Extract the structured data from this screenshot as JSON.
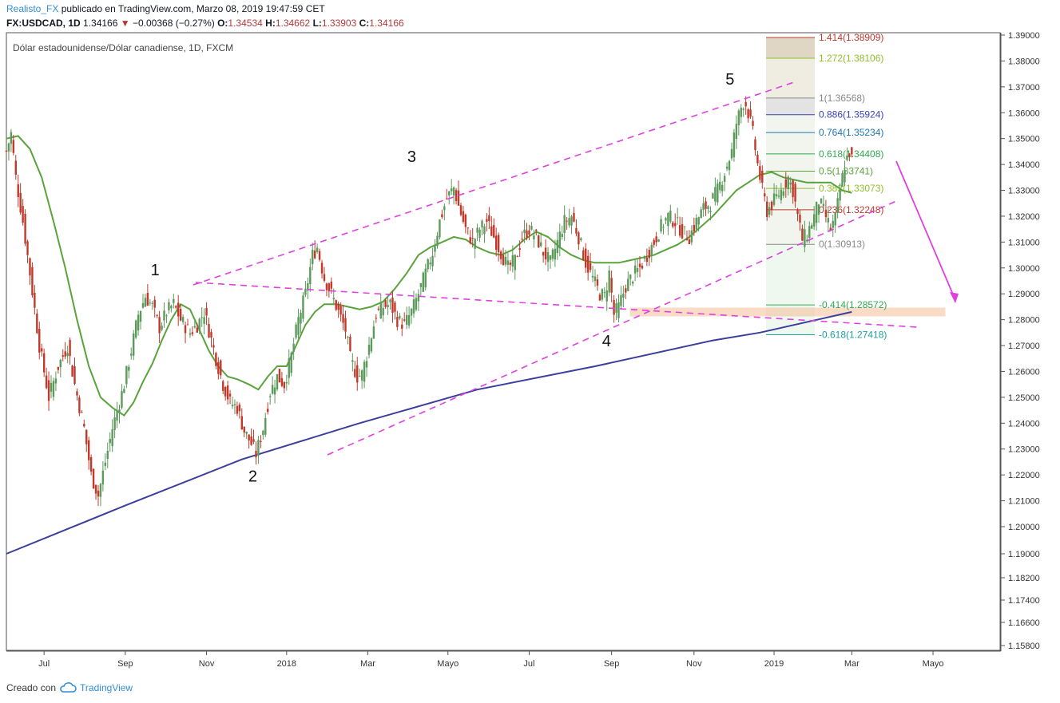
{
  "header": {
    "author": "Realisto_FX",
    "published_text": " publicado en TradingView.com, Marzo 08, 2019 19:47:59 CET",
    "symbol": "FX:USDCAD, 1D",
    "last": "1.34166",
    "change": "−0.00368 (−0.27%)",
    "open_label": "O:",
    "open": "1.34534",
    "high_label": "H:",
    "high": "1.34662",
    "low_label": "L:",
    "low": "1.33903",
    "close_label": "C:",
    "close": "1.34166"
  },
  "chart_title": "Dólar estadounidense/Dólar canadiense, 1D, FXCM",
  "footer": {
    "created_with": "Creado con",
    "brand": "TradingView"
  },
  "colors": {
    "up_candle": "#5b9a5b",
    "down_candle": "#c0392b",
    "ma_green": "#5aa33c",
    "ma_blue": "#3a3f9c",
    "channel": "#e040e0",
    "support_zone": "#f4b183",
    "axis_text": "#333333"
  },
  "chart_data": {
    "type": "candlestick",
    "symbol": "USDCAD",
    "timeframe": "1D",
    "y_axis": {
      "ticks": [
        "1.39000",
        "1.38000",
        "1.37000",
        "1.36000",
        "1.35000",
        "1.34000",
        "1.33000",
        "1.32000",
        "1.31000",
        "1.30000",
        "1.29000",
        "1.28000",
        "1.27000",
        "1.26000",
        "1.25000",
        "1.24000",
        "1.23000",
        "1.22000",
        "1.21000",
        "1.20000",
        "1.19000",
        "1.18200",
        "1.17400",
        "1.16600",
        "1.15800"
      ],
      "position": "right"
    },
    "x_axis": {
      "ticks": [
        "Jul",
        "Sep",
        "Nov",
        "2018",
        "Mar",
        "Mayo",
        "Jul",
        "Sep",
        "Nov",
        "2019",
        "Mar",
        "Mayo"
      ]
    },
    "price_path": [
      [
        0,
        1.345
      ],
      [
        4,
        1.352
      ],
      [
        8,
        1.335
      ],
      [
        14,
        1.318
      ],
      [
        20,
        1.298
      ],
      [
        28,
        1.27
      ],
      [
        36,
        1.25
      ],
      [
        44,
        1.262
      ],
      [
        52,
        1.27
      ],
      [
        58,
        1.255
      ],
      [
        66,
        1.238
      ],
      [
        72,
        1.22
      ],
      [
        78,
        1.212
      ],
      [
        84,
        1.225
      ],
      [
        90,
        1.238
      ],
      [
        96,
        1.248
      ],
      [
        100,
        1.255
      ],
      [
        106,
        1.268
      ],
      [
        112,
        1.282
      ],
      [
        118,
        1.289
      ],
      [
        124,
        1.285
      ],
      [
        130,
        1.277
      ],
      [
        136,
        1.283
      ],
      [
        142,
        1.286
      ],
      [
        148,
        1.28
      ],
      [
        156,
        1.275
      ],
      [
        162,
        1.278
      ],
      [
        168,
        1.283
      ],
      [
        172,
        1.276
      ],
      [
        178,
        1.265
      ],
      [
        184,
        1.255
      ],
      [
        190,
        1.248
      ],
      [
        196,
        1.246
      ],
      [
        202,
        1.237
      ],
      [
        208,
        1.232
      ],
      [
        212,
        1.228
      ],
      [
        218,
        1.238
      ],
      [
        224,
        1.252
      ],
      [
        230,
        1.258
      ],
      [
        236,
        1.255
      ],
      [
        242,
        1.266
      ],
      [
        248,
        1.28
      ],
      [
        254,
        1.29
      ],
      [
        260,
        1.305
      ],
      [
        264,
        1.308
      ],
      [
        270,
        1.296
      ],
      [
        276,
        1.29
      ],
      [
        282,
        1.283
      ],
      [
        288,
        1.276
      ],
      [
        292,
        1.265
      ],
      [
        298,
        1.258
      ],
      [
        302,
        1.259
      ],
      [
        308,
        1.27
      ],
      [
        314,
        1.282
      ],
      [
        320,
        1.285
      ],
      [
        326,
        1.286
      ],
      [
        332,
        1.28
      ],
      [
        338,
        1.278
      ],
      [
        344,
        1.283
      ],
      [
        350,
        1.29
      ],
      [
        356,
        1.298
      ],
      [
        362,
        1.306
      ],
      [
        368,
        1.318
      ],
      [
        374,
        1.327
      ],
      [
        380,
        1.331
      ],
      [
        384,
        1.324
      ],
      [
        390,
        1.315
      ],
      [
        396,
        1.31
      ],
      [
        402,
        1.315
      ],
      [
        408,
        1.318
      ],
      [
        414,
        1.312
      ],
      [
        420,
        1.306
      ],
      [
        426,
        1.3
      ],
      [
        432,
        1.303
      ],
      [
        438,
        1.312
      ],
      [
        444,
        1.315
      ],
      [
        450,
        1.312
      ],
      [
        456,
        1.306
      ],
      [
        462,
        1.302
      ],
      [
        468,
        1.31
      ],
      [
        474,
        1.318
      ],
      [
        480,
        1.32
      ],
      [
        486,
        1.312
      ],
      [
        492,
        1.302
      ],
      [
        498,
        1.296
      ],
      [
        504,
        1.29
      ],
      [
        508,
        1.289
      ],
      [
        512,
        1.298
      ],
      [
        516,
        1.282
      ],
      [
        520,
        1.285
      ],
      [
        526,
        1.293
      ],
      [
        532,
        1.297
      ],
      [
        538,
        1.3
      ],
      [
        544,
        1.305
      ],
      [
        550,
        1.31
      ],
      [
        556,
        1.316
      ],
      [
        562,
        1.32
      ],
      [
        568,
        1.318
      ],
      [
        574,
        1.314
      ],
      [
        580,
        1.312
      ],
      [
        586,
        1.318
      ],
      [
        592,
        1.323
      ],
      [
        598,
        1.325
      ],
      [
        604,
        1.33
      ],
      [
        610,
        1.337
      ],
      [
        616,
        1.345
      ],
      [
        620,
        1.356
      ],
      [
        624,
        1.362
      ],
      [
        627,
        1.365
      ],
      [
        630,
        1.36
      ],
      [
        634,
        1.352
      ],
      [
        638,
        1.34
      ],
      [
        642,
        1.33
      ],
      [
        646,
        1.322
      ],
      [
        652,
        1.326
      ],
      [
        658,
        1.33
      ],
      [
        664,
        1.335
      ],
      [
        668,
        1.33
      ],
      [
        672,
        1.32
      ],
      [
        676,
        1.311
      ],
      [
        680,
        1.313
      ],
      [
        686,
        1.32
      ],
      [
        690,
        1.326
      ],
      [
        694,
        1.322
      ],
      [
        700,
        1.315
      ],
      [
        704,
        1.319
      ],
      [
        708,
        1.33
      ],
      [
        712,
        1.34
      ],
      [
        716,
        1.345
      ],
      [
        718,
        1.342
      ]
    ],
    "moving_averages": [
      {
        "name": "",
        "color_key": "ma_green",
        "points": [
          [
            0,
            1.35
          ],
          [
            10,
            1.351
          ],
          [
            20,
            1.346
          ],
          [
            30,
            1.335
          ],
          [
            40,
            1.318
          ],
          [
            50,
            1.3
          ],
          [
            60,
            1.28
          ],
          [
            70,
            1.262
          ],
          [
            80,
            1.25
          ],
          [
            90,
            1.246
          ],
          [
            100,
            1.243
          ],
          [
            108,
            1.248
          ],
          [
            116,
            1.256
          ],
          [
            124,
            1.263
          ],
          [
            132,
            1.272
          ],
          [
            140,
            1.28
          ],
          [
            148,
            1.286
          ],
          [
            156,
            1.284
          ],
          [
            164,
            1.276
          ],
          [
            172,
            1.268
          ],
          [
            180,
            1.262
          ],
          [
            188,
            1.258
          ],
          [
            196,
            1.257
          ],
          [
            206,
            1.255
          ],
          [
            214,
            1.253
          ],
          [
            222,
            1.258
          ],
          [
            230,
            1.262
          ],
          [
            238,
            1.262
          ],
          [
            246,
            1.27
          ],
          [
            254,
            1.278
          ],
          [
            262,
            1.283
          ],
          [
            270,
            1.286
          ],
          [
            280,
            1.286
          ],
          [
            290,
            1.285
          ],
          [
            300,
            1.284
          ],
          [
            310,
            1.285
          ],
          [
            320,
            1.287
          ],
          [
            330,
            1.292
          ],
          [
            340,
            1.298
          ],
          [
            350,
            1.305
          ],
          [
            360,
            1.308
          ],
          [
            370,
            1.31
          ],
          [
            380,
            1.312
          ],
          [
            390,
            1.311
          ],
          [
            400,
            1.308
          ],
          [
            410,
            1.306
          ],
          [
            420,
            1.305
          ],
          [
            430,
            1.307
          ],
          [
            440,
            1.311
          ],
          [
            450,
            1.314
          ],
          [
            460,
            1.312
          ],
          [
            470,
            1.308
          ],
          [
            480,
            1.305
          ],
          [
            490,
            1.303
          ],
          [
            500,
            1.302
          ],
          [
            510,
            1.302
          ],
          [
            520,
            1.302
          ],
          [
            530,
            1.303
          ],
          [
            540,
            1.304
          ],
          [
            550,
            1.305
          ],
          [
            560,
            1.307
          ],
          [
            570,
            1.309
          ],
          [
            580,
            1.312
          ],
          [
            590,
            1.316
          ],
          [
            600,
            1.32
          ],
          [
            610,
            1.325
          ],
          [
            620,
            1.33
          ],
          [
            630,
            1.333
          ],
          [
            640,
            1.336
          ],
          [
            650,
            1.337
          ],
          [
            660,
            1.335
          ],
          [
            670,
            1.334
          ],
          [
            680,
            1.333
          ],
          [
            690,
            1.333
          ],
          [
            700,
            1.333
          ],
          [
            710,
            1.33
          ],
          [
            718,
            1.329
          ]
        ]
      },
      {
        "name": "",
        "color_key": "ma_blue",
        "points": [
          [
            0,
            1.19
          ],
          [
            100,
            1.208
          ],
          [
            200,
            1.226
          ],
          [
            300,
            1.24
          ],
          [
            400,
            1.253
          ],
          [
            500,
            1.262
          ],
          [
            600,
            1.272
          ],
          [
            640,
            1.275
          ],
          [
            718,
            1.283
          ]
        ]
      }
    ],
    "wave_labels": [
      {
        "label": "1",
        "i": 128,
        "price": 1.291
      },
      {
        "label": "2",
        "i": 215,
        "price": 1.226
      },
      {
        "label": "3",
        "i": 350,
        "price": 1.333
      },
      {
        "label": "4",
        "i": 510,
        "price": 1.279
      },
      {
        "label": "5",
        "i": 627,
        "price": 1.366
      }
    ],
    "fibonacci": [
      {
        "level": "1.414",
        "value": "1.38909",
        "color": "#c0392b"
      },
      {
        "level": "1.272",
        "value": "1.38106",
        "color": "#8fbf2a"
      },
      {
        "level": "1",
        "value": "1.36568",
        "color": "#888888"
      },
      {
        "level": "0.886",
        "value": "1.35924",
        "color": "#3a3fbf"
      },
      {
        "level": "0.764",
        "value": "1.35234",
        "color": "#1f77b4"
      },
      {
        "level": "0.618",
        "value": "1.34408",
        "color": "#2eaa4f"
      },
      {
        "level": "0.5",
        "value": "1.33741",
        "color": "#5aa33c"
      },
      {
        "level": "0.382",
        "value": "1.33073",
        "color": "#8fbf2a"
      },
      {
        "level": "0.236",
        "value": "1.32248",
        "color": "#c0392b"
      },
      {
        "level": "0",
        "value": "1.30913",
        "color": "#888888"
      },
      {
        "level": "-0.414",
        "value": "1.28572",
        "color": "#2eaa4f"
      },
      {
        "level": "-0.618",
        "value": "1.27418",
        "color": "#1fa0a0"
      }
    ]
  }
}
